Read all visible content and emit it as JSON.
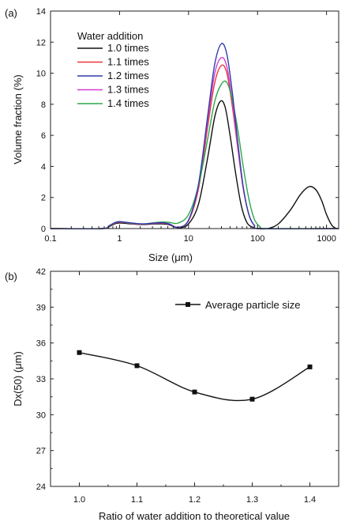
{
  "chart_data": [
    {
      "panel_label": "(a)",
      "type": "line",
      "xscale": "log",
      "xlim": [
        0.1,
        1500
      ],
      "ylim": [
        0,
        14
      ],
      "xlabel": "Size (μm)",
      "ylabel": "Volume fraction (%)",
      "x_ticks": [
        0.1,
        1,
        10,
        100,
        1000
      ],
      "x_tick_labels": [
        "0.1",
        "1",
        "10",
        "100",
        "1000"
      ],
      "y_ticks": [
        0,
        2,
        4,
        6,
        8,
        10,
        12,
        14
      ],
      "y_tick_labels": [
        "0",
        "2",
        "4",
        "6",
        "8",
        "10",
        "12",
        "14"
      ],
      "legend_title": "Water addition",
      "legend_position": "top-left",
      "grid": false,
      "series": [
        {
          "name": "1.0 times",
          "color": "#111111",
          "points": [
            [
              0.1,
              0
            ],
            [
              0.55,
              0
            ],
            [
              0.7,
              0.12
            ],
            [
              0.85,
              0.3
            ],
            [
              1.0,
              0.36
            ],
            [
              1.5,
              0.3
            ],
            [
              2.2,
              0.26
            ],
            [
              3.2,
              0.3
            ],
            [
              4.2,
              0.3
            ],
            [
              5.3,
              0.24
            ],
            [
              7,
              0.05
            ],
            [
              10,
              0.3
            ],
            [
              14,
              1.6
            ],
            [
              19,
              4.6
            ],
            [
              24,
              7.2
            ],
            [
              29,
              8.2
            ],
            [
              34,
              7.8
            ],
            [
              40,
              6.0
            ],
            [
              48,
              3.6
            ],
            [
              58,
              1.5
            ],
            [
              70,
              0.4
            ],
            [
              85,
              0.08
            ],
            [
              100,
              0
            ],
            [
              140,
              0
            ],
            [
              200,
              0.3
            ],
            [
              300,
              1.2
            ],
            [
              420,
              2.2
            ],
            [
              560,
              2.7
            ],
            [
              700,
              2.5
            ],
            [
              850,
              1.8
            ],
            [
              1000,
              0.9
            ],
            [
              1200,
              0.2
            ],
            [
              1400,
              0
            ]
          ]
        },
        {
          "name": "1.1 times",
          "color": "#e8353a",
          "points": [
            [
              0.1,
              0
            ],
            [
              0.55,
              0
            ],
            [
              0.7,
              0.15
            ],
            [
              0.85,
              0.34
            ],
            [
              1.0,
              0.42
            ],
            [
              1.5,
              0.33
            ],
            [
              2.2,
              0.28
            ],
            [
              3.2,
              0.34
            ],
            [
              4.2,
              0.35
            ],
            [
              5.3,
              0.28
            ],
            [
              7,
              0.08
            ],
            [
              10,
              0.5
            ],
            [
              14,
              2.6
            ],
            [
              19,
              6.6
            ],
            [
              24,
              9.4
            ],
            [
              30,
              10.5
            ],
            [
              36,
              10.0
            ],
            [
              43,
              7.9
            ],
            [
              52,
              5.1
            ],
            [
              62,
              2.6
            ],
            [
              75,
              0.9
            ],
            [
              90,
              0.2
            ],
            [
              110,
              0
            ],
            [
              1500,
              0
            ]
          ]
        },
        {
          "name": "1.2 times",
          "color": "#2f3ea8",
          "points": [
            [
              0.1,
              0
            ],
            [
              0.55,
              0
            ],
            [
              0.7,
              0.18
            ],
            [
              0.85,
              0.38
            ],
            [
              1.0,
              0.45
            ],
            [
              1.5,
              0.36
            ],
            [
              2.2,
              0.3
            ],
            [
              3.2,
              0.36
            ],
            [
              4.2,
              0.38
            ],
            [
              5.3,
              0.3
            ],
            [
              7,
              0.08
            ],
            [
              10,
              0.55
            ],
            [
              14,
              2.9
            ],
            [
              19,
              7.3
            ],
            [
              24,
              10.6
            ],
            [
              30,
              11.9
            ],
            [
              36,
              11.2
            ],
            [
              43,
              8.8
            ],
            [
              52,
              5.5
            ],
            [
              62,
              2.7
            ],
            [
              75,
              0.9
            ],
            [
              90,
              0.2
            ],
            [
              110,
              0
            ],
            [
              1500,
              0
            ]
          ]
        },
        {
          "name": "1.3 times",
          "color": "#d43fd0",
          "points": [
            [
              0.1,
              0
            ],
            [
              0.55,
              0
            ],
            [
              0.7,
              0.16
            ],
            [
              0.85,
              0.36
            ],
            [
              1.0,
              0.43
            ],
            [
              1.5,
              0.34
            ],
            [
              2.2,
              0.29
            ],
            [
              3.2,
              0.35
            ],
            [
              4.2,
              0.36
            ],
            [
              5.3,
              0.29
            ],
            [
              7,
              0.08
            ],
            [
              10,
              0.52
            ],
            [
              14,
              2.8
            ],
            [
              19,
              7.0
            ],
            [
              24,
              10.0
            ],
            [
              30,
              11.0
            ],
            [
              36,
              10.4
            ],
            [
              43,
              8.2
            ],
            [
              52,
              5.2
            ],
            [
              62,
              2.6
            ],
            [
              75,
              0.9
            ],
            [
              90,
              0.2
            ],
            [
              110,
              0
            ],
            [
              1500,
              0
            ]
          ]
        },
        {
          "name": "1.4 times",
          "color": "#2ca84a",
          "points": [
            [
              0.1,
              0
            ],
            [
              0.55,
              0
            ],
            [
              0.7,
              0.17
            ],
            [
              0.85,
              0.37
            ],
            [
              1.0,
              0.44
            ],
            [
              1.5,
              0.35
            ],
            [
              2.2,
              0.3
            ],
            [
              3.2,
              0.38
            ],
            [
              4.2,
              0.42
            ],
            [
              5.3,
              0.4
            ],
            [
              7,
              0.35
            ],
            [
              10,
              0.9
            ],
            [
              14,
              2.8
            ],
            [
              19,
              5.8
            ],
            [
              24,
              8.2
            ],
            [
              30,
              9.3
            ],
            [
              36,
              9.4
            ],
            [
              43,
              8.3
            ],
            [
              52,
              6.3
            ],
            [
              62,
              4.0
            ],
            [
              75,
              1.9
            ],
            [
              90,
              0.6
            ],
            [
              110,
              0.1
            ],
            [
              130,
              0
            ],
            [
              1500,
              0
            ]
          ]
        }
      ]
    },
    {
      "panel_label": "(b)",
      "type": "line",
      "xlim": [
        0.95,
        1.45
      ],
      "ylim": [
        24,
        42
      ],
      "xlabel": "Ratio of water addition to theoretical value",
      "ylabel": "Dx(50) (μm)",
      "x_ticks": [
        1.0,
        1.1,
        1.2,
        1.3,
        1.4
      ],
      "x_tick_labels": [
        "1.0",
        "1.1",
        "1.2",
        "1.3",
        "1.4"
      ],
      "y_ticks": [
        24,
        27,
        30,
        33,
        36,
        39,
        42
      ],
      "y_tick_labels": [
        "24",
        "27",
        "30",
        "33",
        "36",
        "39",
        "42"
      ],
      "legend_position": "top-right",
      "grid": false,
      "series": [
        {
          "name": "Average particle size",
          "color": "#111111",
          "marker": "square",
          "smooth": true,
          "x": [
            1.0,
            1.1,
            1.2,
            1.3,
            1.4
          ],
          "values": [
            35.2,
            34.1,
            31.9,
            31.3,
            34.0
          ]
        }
      ]
    }
  ]
}
